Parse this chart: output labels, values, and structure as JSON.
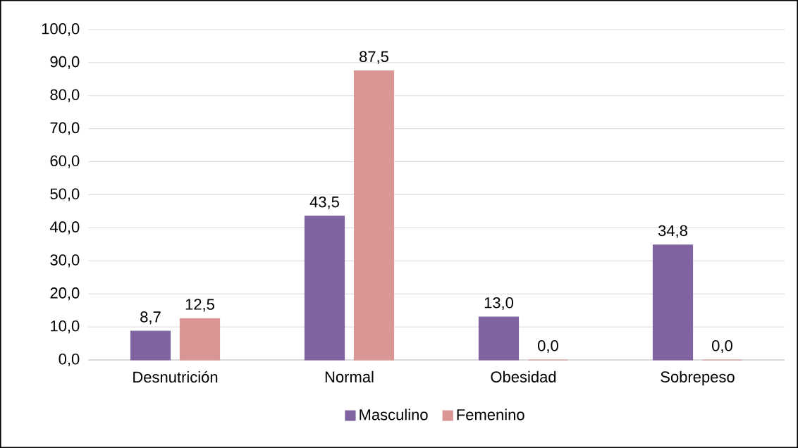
{
  "chart_data": {
    "type": "bar",
    "categories": [
      "Desnutrición",
      "Normal",
      "Obesidad",
      "Sobrepeso"
    ],
    "series": [
      {
        "name": "Masculino",
        "color": "#8064a2",
        "values": [
          8.7,
          43.5,
          13.0,
          34.8
        ],
        "value_labels": [
          "8,7",
          "43,5",
          "13,0",
          "34,8"
        ]
      },
      {
        "name": "Femenino",
        "color": "#d99694",
        "values": [
          12.5,
          87.5,
          0.0,
          0.0
        ],
        "value_labels": [
          "12,5",
          "87,5",
          "0,0",
          "0,0"
        ]
      }
    ],
    "ylim": [
      0,
      100
    ],
    "yticks": [
      {
        "value": 0,
        "label": "0,0"
      },
      {
        "value": 10,
        "label": "10,0"
      },
      {
        "value": 20,
        "label": "20,0"
      },
      {
        "value": 30,
        "label": "30,0"
      },
      {
        "value": 40,
        "label": "40,0"
      },
      {
        "value": 50,
        "label": "50,0"
      },
      {
        "value": 60,
        "label": "60,0"
      },
      {
        "value": 70,
        "label": "70,0"
      },
      {
        "value": 80,
        "label": "80,0"
      },
      {
        "value": 90,
        "label": "90,0"
      },
      {
        "value": 100,
        "label": "100,0"
      }
    ],
    "grid": "y",
    "legend": "bottom"
  }
}
